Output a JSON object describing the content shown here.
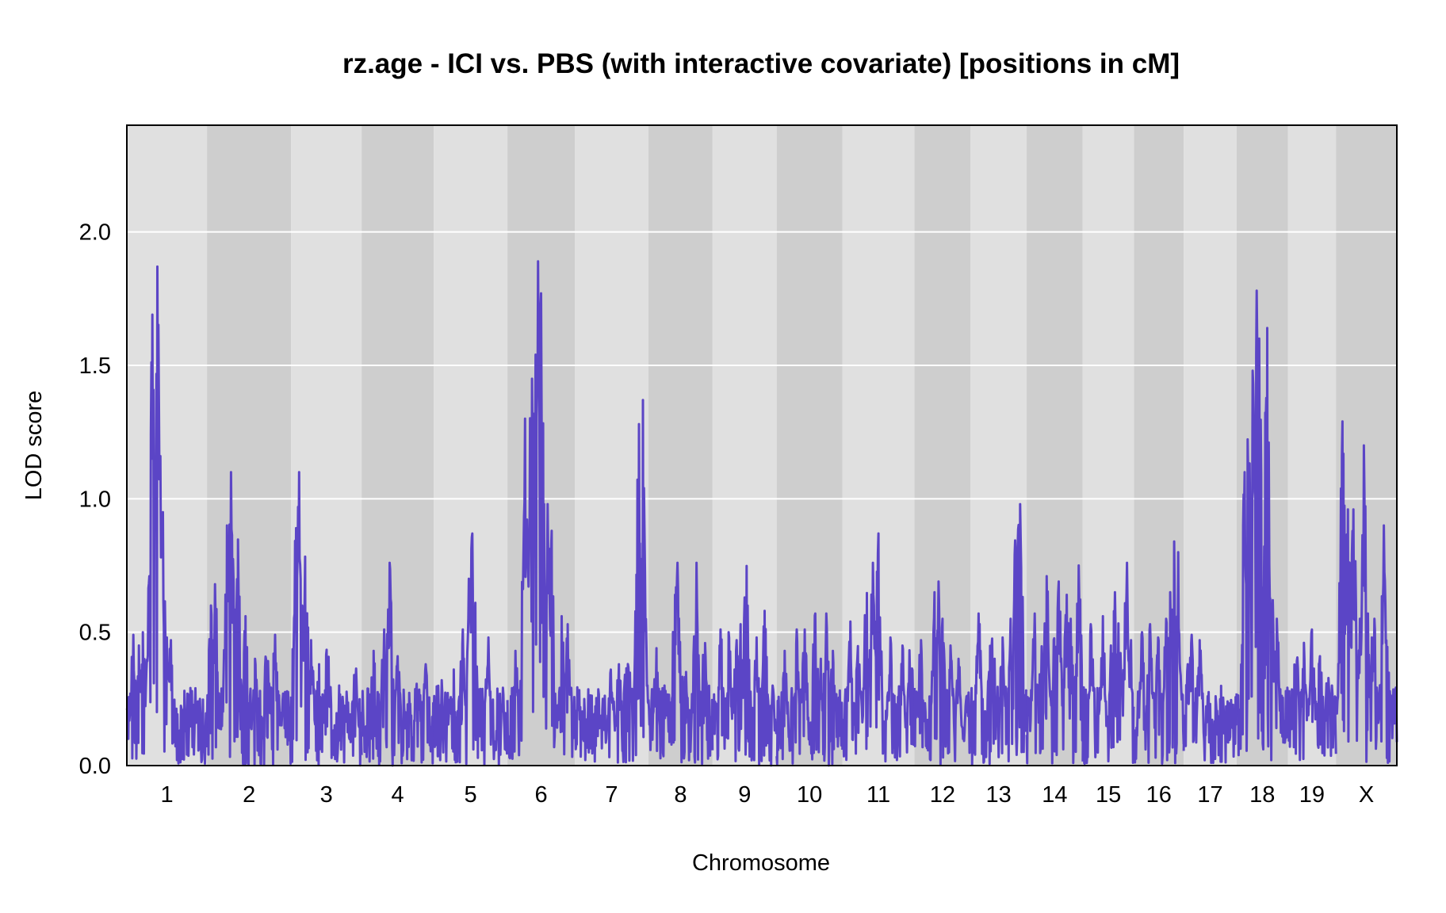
{
  "chart_data": {
    "type": "line",
    "title": "rz.age - ICI vs. PBS (with interactive covariate) [positions in cM]",
    "xlabel": "Chromosome",
    "ylabel": "LOD score",
    "ylim": [
      0,
      2.4
    ],
    "y_ticks": [
      "0.0",
      "0.5",
      "1.0",
      "1.5",
      "2.0"
    ],
    "grid": true,
    "colors": {
      "line": "#5b45c6",
      "band_light": "#e0e0e0",
      "band_dark": "#cecece",
      "gridline": "#ffffff"
    },
    "chromosomes": [
      {
        "label": "1",
        "length_cM": 100,
        "peaks": [
          [
            38,
            1.87
          ],
          [
            32,
            1.69
          ],
          [
            42,
            1.16
          ],
          [
            28,
            0.71
          ],
          [
            45,
            0.95
          ],
          [
            20,
            0.5
          ],
          [
            8,
            0.49
          ],
          [
            50,
            0.48
          ],
          [
            55,
            0.47
          ],
          [
            70,
            0.27
          ],
          [
            85,
            0.23
          ],
          [
            15,
            0.45
          ]
        ]
      },
      {
        "label": "2",
        "length_cM": 105,
        "peaks": [
          [
            30,
            1.1
          ],
          [
            38,
            1.06
          ],
          [
            25,
            0.9
          ],
          [
            10,
            0.68
          ],
          [
            48,
            0.56
          ],
          [
            75,
            0.48
          ],
          [
            85,
            0.49
          ],
          [
            95,
            0.27
          ],
          [
            60,
            0.4
          ],
          [
            5,
            0.6
          ]
        ]
      },
      {
        "label": "3",
        "length_cM": 88,
        "peaks": [
          [
            10,
            1.1
          ],
          [
            6,
            0.89
          ],
          [
            18,
            0.81
          ],
          [
            25,
            0.47
          ],
          [
            45,
            0.48
          ],
          [
            80,
            0.4
          ],
          [
            60,
            0.3
          ],
          [
            35,
            0.38
          ]
        ]
      },
      {
        "label": "4",
        "length_cM": 90,
        "peaks": [
          [
            35,
            0.76
          ],
          [
            28,
            0.51
          ],
          [
            45,
            0.41
          ],
          [
            15,
            0.43
          ],
          [
            70,
            0.33
          ],
          [
            80,
            0.38
          ],
          [
            55,
            0.2
          ]
        ]
      },
      {
        "label": "5",
        "length_cM": 92,
        "peaks": [
          [
            48,
            0.87
          ],
          [
            44,
            0.7
          ],
          [
            52,
            0.61
          ],
          [
            36,
            0.51
          ],
          [
            25,
            0.36
          ],
          [
            68,
            0.48
          ],
          [
            80,
            0.15
          ],
          [
            10,
            0.32
          ]
        ]
      },
      {
        "label": "6",
        "length_cM": 84,
        "peaks": [
          [
            38,
            1.89
          ],
          [
            35,
            1.54
          ],
          [
            42,
            1.77
          ],
          [
            22,
            1.3
          ],
          [
            30,
            1.5
          ],
          [
            50,
            0.98
          ],
          [
            55,
            0.88
          ],
          [
            68,
            0.56
          ],
          [
            75,
            0.53
          ],
          [
            10,
            0.43
          ]
        ]
      },
      {
        "label": "7",
        "length_cM": 92,
        "peaks": [
          [
            85,
            1.37
          ],
          [
            80,
            1.28
          ],
          [
            65,
            0.64
          ],
          [
            55,
            0.38
          ],
          [
            45,
            0.36
          ],
          [
            20,
            0.32
          ],
          [
            35,
            0.25
          ],
          [
            70,
            0.25
          ]
        ]
      },
      {
        "label": "8",
        "length_cM": 80,
        "peaks": [
          [
            36,
            0.76
          ],
          [
            33,
            0.64
          ],
          [
            60,
            0.76
          ],
          [
            45,
            0.43
          ],
          [
            70,
            0.51
          ],
          [
            20,
            0.3
          ],
          [
            10,
            0.44
          ]
        ]
      },
      {
        "label": "9",
        "length_cM": 80,
        "peaks": [
          [
            42,
            0.84
          ],
          [
            65,
            0.58
          ],
          [
            35,
            0.53
          ],
          [
            10,
            0.51
          ],
          [
            20,
            0.5
          ],
          [
            55,
            0.48
          ],
          [
            30,
            0.47
          ],
          [
            75,
            0.3
          ]
        ]
      },
      {
        "label": "10",
        "length_cM": 82,
        "peaks": [
          [
            48,
            0.57
          ],
          [
            62,
            0.57
          ],
          [
            35,
            0.51
          ],
          [
            25,
            0.51
          ],
          [
            55,
            0.4
          ],
          [
            70,
            0.43
          ],
          [
            10,
            0.43
          ]
        ]
      },
      {
        "label": "11",
        "length_cM": 90,
        "peaks": [
          [
            45,
            0.87
          ],
          [
            38,
            0.76
          ],
          [
            30,
            0.7
          ],
          [
            20,
            0.48
          ],
          [
            10,
            0.54
          ],
          [
            60,
            0.48
          ],
          [
            75,
            0.45
          ],
          [
            85,
            0.47
          ]
        ]
      },
      {
        "label": "12",
        "length_cM": 70,
        "peaks": [
          [
            30,
            0.69
          ],
          [
            25,
            0.65
          ],
          [
            35,
            0.55
          ],
          [
            55,
            0.4
          ],
          [
            45,
            0.45
          ],
          [
            8,
            0.47
          ],
          [
            65,
            0.26
          ]
        ]
      },
      {
        "label": "13",
        "length_cM": 70,
        "peaks": [
          [
            58,
            1.08
          ],
          [
            62,
            0.98
          ],
          [
            55,
            0.79
          ],
          [
            50,
            0.55
          ],
          [
            10,
            0.57
          ],
          [
            25,
            0.55
          ],
          [
            40,
            0.48
          ],
          [
            30,
            0.4
          ]
        ]
      },
      {
        "label": "14",
        "length_cM": 70,
        "peaks": [
          [
            10,
            0.57
          ],
          [
            20,
            0.64
          ],
          [
            25,
            0.71
          ],
          [
            40,
            0.69
          ],
          [
            50,
            0.64
          ],
          [
            65,
            0.75
          ],
          [
            55,
            0.55
          ],
          [
            35,
            0.51
          ]
        ]
      },
      {
        "label": "15",
        "length_cM": 64,
        "peaks": [
          [
            55,
            0.76
          ],
          [
            40,
            0.65
          ],
          [
            25,
            0.56
          ],
          [
            45,
            0.6
          ],
          [
            10,
            0.53
          ],
          [
            60,
            0.47
          ],
          [
            35,
            0.45
          ]
        ]
      },
      {
        "label": "16",
        "length_cM": 62,
        "peaks": [
          [
            50,
            0.84
          ],
          [
            55,
            0.8
          ],
          [
            40,
            0.55
          ],
          [
            10,
            0.5
          ],
          [
            20,
            0.53
          ],
          [
            30,
            0.48
          ],
          [
            45,
            0.65
          ]
        ]
      },
      {
        "label": "17",
        "length_cM": 66,
        "peaks": [
          [
            10,
            0.49
          ],
          [
            5,
            0.38
          ],
          [
            20,
            0.47
          ],
          [
            30,
            0.26
          ],
          [
            40,
            0.26
          ],
          [
            50,
            0.21
          ],
          [
            60,
            0.18
          ]
        ]
      },
      {
        "label": "18",
        "length_cM": 64,
        "peaks": [
          [
            25,
            1.78
          ],
          [
            28,
            1.6
          ],
          [
            38,
            1.64
          ],
          [
            20,
            1.48
          ],
          [
            15,
            1.35
          ],
          [
            10,
            1.1
          ],
          [
            45,
            0.62
          ],
          [
            50,
            0.55
          ],
          [
            35,
            1.04
          ]
        ]
      },
      {
        "label": "19",
        "length_cM": 60,
        "peaks": [
          [
            10,
            0.48
          ],
          [
            20,
            0.46
          ],
          [
            30,
            0.51
          ],
          [
            40,
            0.41
          ],
          [
            50,
            0.37
          ],
          [
            55,
            0.3
          ]
        ]
      },
      {
        "label": "X",
        "length_cM": 76,
        "peaks": [
          [
            8,
            1.29
          ],
          [
            15,
            0.96
          ],
          [
            22,
            0.96
          ],
          [
            35,
            1.2
          ],
          [
            30,
            0.55
          ],
          [
            40,
            0.57
          ],
          [
            48,
            0.55
          ],
          [
            60,
            0.9
          ],
          [
            65,
            0.48
          ],
          [
            45,
            0.48
          ]
        ]
      }
    ]
  }
}
